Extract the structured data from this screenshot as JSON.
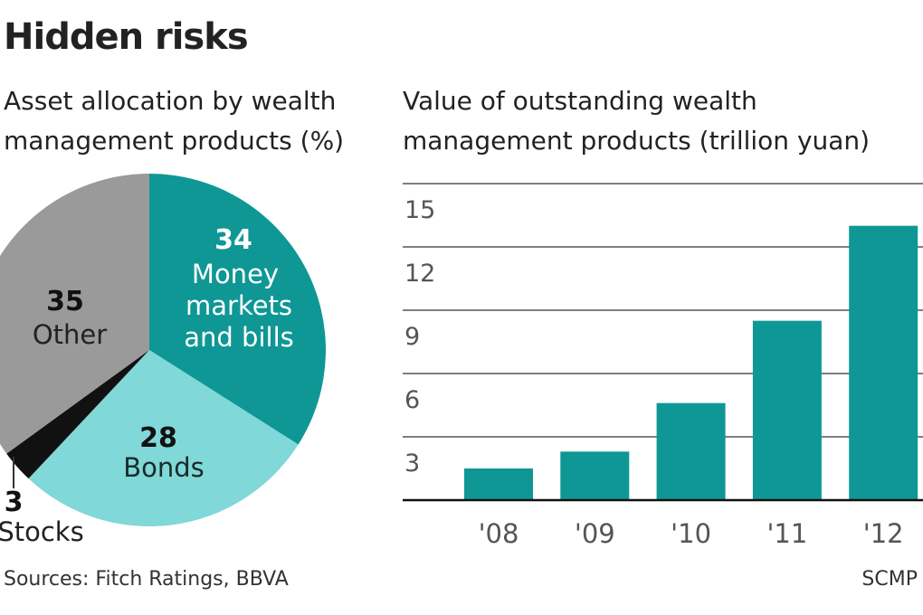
{
  "title": "Hidden risks",
  "source": "Sources: Fitch Ratings, BBVA",
  "credit": "SCMP",
  "colors": {
    "teal": "#0f9795",
    "light_teal": "#80d8d8",
    "gray": "#9a9a9a",
    "black": "#111111",
    "grid": "#555555"
  },
  "chart_data": [
    {
      "type": "pie",
      "title": "Asset allocation by wealth management products (%)",
      "title_lines": [
        "Asset allocation by wealth",
        "management products (%)"
      ],
      "slices": [
        {
          "label": "Money markets and bills",
          "label_lines": [
            "Money",
            "markets",
            "and bills"
          ],
          "value": 34,
          "color": "#0f9795"
        },
        {
          "label": "Bonds",
          "label_lines": [
            "Bonds"
          ],
          "value": 28,
          "color": "#80d8d8"
        },
        {
          "label": "Stocks",
          "label_lines": [
            "Stocks"
          ],
          "value": 3,
          "color": "#111111"
        },
        {
          "label": "Other",
          "label_lines": [
            "Other"
          ],
          "value": 35,
          "color": "#9a9a9a"
        }
      ]
    },
    {
      "type": "bar",
      "title": "Value of outstanding wealth management products (trillion yuan)",
      "title_lines": [
        "Value of outstanding wealth",
        "management products (trillion yuan)"
      ],
      "categories": [
        "'08",
        "'09",
        "'10",
        "'11",
        "'12"
      ],
      "values": [
        1.5,
        2.3,
        4.6,
        8.5,
        13.0
      ],
      "yticks": [
        3,
        6,
        9,
        12,
        15
      ],
      "ylim": [
        0,
        15
      ],
      "grid": true,
      "color": "#0f9795"
    }
  ]
}
